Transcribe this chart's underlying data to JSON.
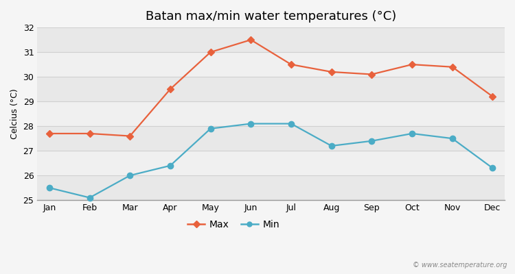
{
  "title": "Batan max/min water temperatures (°C)",
  "ylabel": "Celcius (°C)",
  "months": [
    "Jan",
    "Feb",
    "Mar",
    "Apr",
    "May",
    "Jun",
    "Jul",
    "Aug",
    "Sep",
    "Oct",
    "Nov",
    "Dec"
  ],
  "max_temps": [
    27.7,
    27.7,
    27.6,
    29.5,
    31.0,
    31.5,
    30.5,
    30.2,
    30.1,
    30.5,
    30.4,
    29.2
  ],
  "min_temps": [
    25.5,
    25.1,
    26.0,
    26.4,
    27.9,
    28.1,
    28.1,
    27.2,
    27.4,
    27.7,
    27.5,
    26.3
  ],
  "max_color": "#e8613c",
  "min_color": "#4bacc6",
  "fig_bg_color": "#f5f5f5",
  "band_colors": [
    "#e8e8e8",
    "#f0f0f0"
  ],
  "grid_line_color": "#d0d0d0",
  "ylim": [
    25.0,
    32.0
  ],
  "yticks": [
    25,
    26,
    27,
    28,
    29,
    30,
    31,
    32
  ],
  "watermark": "© www.seatemperature.org",
  "title_fontsize": 13,
  "label_fontsize": 9,
  "tick_fontsize": 9,
  "legend_fontsize": 10
}
